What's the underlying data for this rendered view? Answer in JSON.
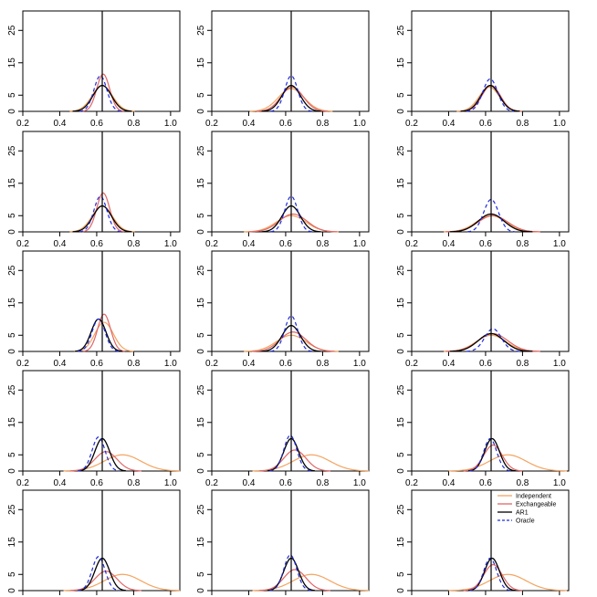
{
  "chart_data": {
    "type": "line",
    "layout_grid": "5 rows x 3 columns of small-multiple density plots",
    "x_ticks": [
      0.2,
      0.4,
      0.6,
      0.8,
      1.0
    ],
    "y_ticks": [
      0,
      5,
      15,
      25
    ],
    "xlim": [
      0.2,
      1.05
    ],
    "ylim": [
      0,
      31
    ],
    "reference_line_x": 0.63,
    "x_tick_labels_shown_below_rows": [
      1,
      2,
      3,
      4
    ],
    "legend": {
      "panel": "row 5, column 3",
      "placement": "top-right",
      "entries": [
        {
          "name": "Independent",
          "color": "#f4a460",
          "style": "solid"
        },
        {
          "name": "Exchangeable",
          "color": "#e06666",
          "style": "solid"
        },
        {
          "name": "AR1",
          "color": "#000000",
          "style": "solid"
        },
        {
          "name": "Oracle",
          "color": "#1f2bdf",
          "style": "dashed"
        }
      ]
    },
    "series_colors": {
      "Independent": "#f4a460",
      "Exchangeable": "#e06666",
      "AR1": "#000000",
      "Oracle": "#1f2bdf"
    },
    "panels": [
      {
        "row": 1,
        "col": 1,
        "series": {
          "Independent": {
            "mu": 0.63,
            "sd": 0.055,
            "peak": 8
          },
          "Exchangeable": {
            "mu": 0.635,
            "sd": 0.035,
            "peak": 11.5
          },
          "AR1": {
            "mu": 0.63,
            "sd": 0.05,
            "peak": 8
          },
          "Oracle": {
            "mu": 0.62,
            "sd": 0.035,
            "peak": 11
          }
        }
      },
      {
        "row": 1,
        "col": 2,
        "series": {
          "Independent": {
            "mu": 0.63,
            "sd": 0.07,
            "peak": 7
          },
          "Exchangeable": {
            "mu": 0.635,
            "sd": 0.06,
            "peak": 7.5
          },
          "AR1": {
            "mu": 0.63,
            "sd": 0.05,
            "peak": 8
          },
          "Oracle": {
            "mu": 0.63,
            "sd": 0.035,
            "peak": 11
          }
        }
      },
      {
        "row": 1,
        "col": 3,
        "series": {
          "Independent": {
            "mu": 0.62,
            "sd": 0.055,
            "peak": 7.5
          },
          "Exchangeable": {
            "mu": 0.63,
            "sd": 0.05,
            "peak": 8
          },
          "AR1": {
            "mu": 0.625,
            "sd": 0.05,
            "peak": 8
          },
          "Oracle": {
            "mu": 0.625,
            "sd": 0.04,
            "peak": 10
          }
        }
      },
      {
        "row": 2,
        "col": 1,
        "series": {
          "Independent": {
            "mu": 0.63,
            "sd": 0.055,
            "peak": 8
          },
          "Exchangeable": {
            "mu": 0.635,
            "sd": 0.035,
            "peak": 12
          },
          "AR1": {
            "mu": 0.63,
            "sd": 0.05,
            "peak": 8
          },
          "Oracle": {
            "mu": 0.62,
            "sd": 0.035,
            "peak": 11
          }
        }
      },
      {
        "row": 2,
        "col": 2,
        "series": {
          "Independent": {
            "mu": 0.63,
            "sd": 0.08,
            "peak": 5
          },
          "Exchangeable": {
            "mu": 0.64,
            "sd": 0.075,
            "peak": 5.5
          },
          "AR1": {
            "mu": 0.63,
            "sd": 0.05,
            "peak": 8
          },
          "Oracle": {
            "mu": 0.63,
            "sd": 0.035,
            "peak": 11
          }
        }
      },
      {
        "row": 2,
        "col": 3,
        "series": {
          "Independent": {
            "mu": 0.63,
            "sd": 0.08,
            "peak": 5
          },
          "Exchangeable": {
            "mu": 0.64,
            "sd": 0.08,
            "peak": 5
          },
          "AR1": {
            "mu": 0.63,
            "sd": 0.07,
            "peak": 5.5
          },
          "Oracle": {
            "mu": 0.63,
            "sd": 0.04,
            "peak": 10
          }
        }
      },
      {
        "row": 3,
        "col": 1,
        "series": {
          "Independent": {
            "mu": 0.64,
            "sd": 0.05,
            "peak": 9
          },
          "Exchangeable": {
            "mu": 0.64,
            "sd": 0.035,
            "peak": 11.5
          },
          "AR1": {
            "mu": 0.61,
            "sd": 0.04,
            "peak": 10
          },
          "Oracle": {
            "mu": 0.61,
            "sd": 0.035,
            "peak": 10
          }
        }
      },
      {
        "row": 3,
        "col": 2,
        "series": {
          "Independent": {
            "mu": 0.63,
            "sd": 0.08,
            "peak": 5
          },
          "Exchangeable": {
            "mu": 0.64,
            "sd": 0.07,
            "peak": 6
          },
          "AR1": {
            "mu": 0.63,
            "sd": 0.05,
            "peak": 8
          },
          "Oracle": {
            "mu": 0.63,
            "sd": 0.035,
            "peak": 11
          }
        }
      },
      {
        "row": 3,
        "col": 3,
        "series": {
          "Independent": {
            "mu": 0.63,
            "sd": 0.08,
            "peak": 5
          },
          "Exchangeable": {
            "mu": 0.64,
            "sd": 0.08,
            "peak": 5.5
          },
          "AR1": {
            "mu": 0.63,
            "sd": 0.07,
            "peak": 5.5
          },
          "Oracle": {
            "mu": 0.64,
            "sd": 0.045,
            "peak": 7
          }
        }
      },
      {
        "row": 4,
        "col": 1,
        "series": {
          "Independent": {
            "mu": 0.74,
            "sd": 0.1,
            "peak": 5
          },
          "Exchangeable": {
            "mu": 0.65,
            "sd": 0.06,
            "peak": 6
          },
          "AR1": {
            "mu": 0.63,
            "sd": 0.04,
            "peak": 10
          },
          "Oracle": {
            "mu": 0.61,
            "sd": 0.035,
            "peak": 10.5
          }
        }
      },
      {
        "row": 4,
        "col": 2,
        "series": {
          "Independent": {
            "mu": 0.74,
            "sd": 0.1,
            "peak": 5
          },
          "Exchangeable": {
            "mu": 0.65,
            "sd": 0.06,
            "peak": 6.5
          },
          "AR1": {
            "mu": 0.63,
            "sd": 0.04,
            "peak": 10
          },
          "Oracle": {
            "mu": 0.625,
            "sd": 0.035,
            "peak": 11
          }
        }
      },
      {
        "row": 4,
        "col": 3,
        "series": {
          "Independent": {
            "mu": 0.72,
            "sd": 0.1,
            "peak": 5
          },
          "Exchangeable": {
            "mu": 0.64,
            "sd": 0.05,
            "peak": 8
          },
          "AR1": {
            "mu": 0.635,
            "sd": 0.04,
            "peak": 10
          },
          "Oracle": {
            "mu": 0.625,
            "sd": 0.035,
            "peak": 10
          }
        }
      },
      {
        "row": 5,
        "col": 1,
        "series": {
          "Independent": {
            "mu": 0.74,
            "sd": 0.1,
            "peak": 5
          },
          "Exchangeable": {
            "mu": 0.65,
            "sd": 0.06,
            "peak": 6
          },
          "AR1": {
            "mu": 0.63,
            "sd": 0.04,
            "peak": 10
          },
          "Oracle": {
            "mu": 0.61,
            "sd": 0.035,
            "peak": 10.5
          }
        }
      },
      {
        "row": 5,
        "col": 2,
        "series": {
          "Independent": {
            "mu": 0.74,
            "sd": 0.1,
            "peak": 5
          },
          "Exchangeable": {
            "mu": 0.65,
            "sd": 0.06,
            "peak": 6.5
          },
          "AR1": {
            "mu": 0.63,
            "sd": 0.04,
            "peak": 10
          },
          "Oracle": {
            "mu": 0.625,
            "sd": 0.035,
            "peak": 11
          }
        }
      },
      {
        "row": 5,
        "col": 3,
        "series": {
          "Independent": {
            "mu": 0.72,
            "sd": 0.1,
            "peak": 5
          },
          "Exchangeable": {
            "mu": 0.64,
            "sd": 0.05,
            "peak": 8
          },
          "AR1": {
            "mu": 0.635,
            "sd": 0.04,
            "peak": 10
          },
          "Oracle": {
            "mu": 0.625,
            "sd": 0.035,
            "peak": 10
          }
        }
      }
    ]
  }
}
